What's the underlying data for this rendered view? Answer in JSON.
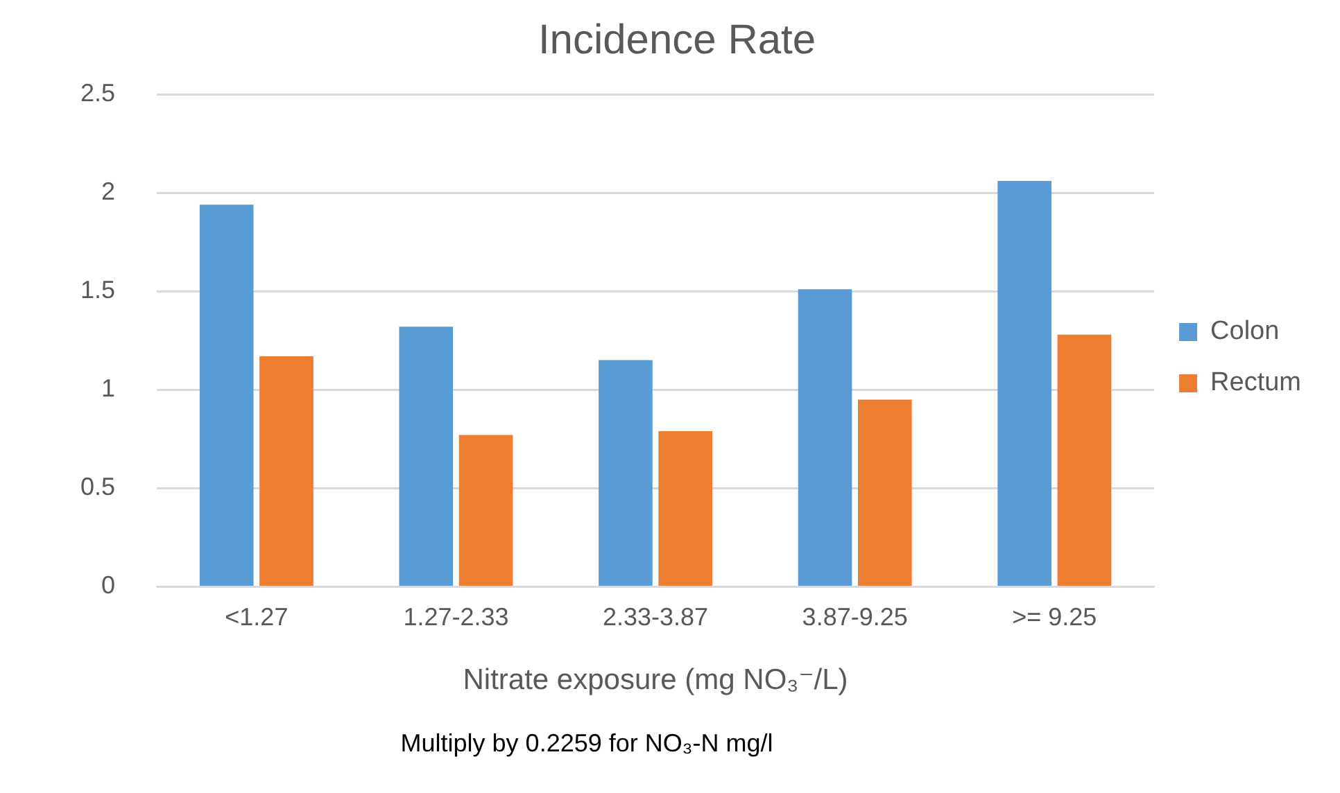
{
  "chart_data": {
    "type": "bar",
    "title": "Incidence Rate",
    "xlabel": "Nitrate exposure (mg NO₃⁻/L)",
    "categories": [
      "<1.27",
      "1.27-2.33",
      "2.33-3.87",
      "3.87-9.25",
      ">= 9.25"
    ],
    "series": [
      {
        "name": "Colon",
        "color": "#5b9bd5",
        "values": [
          1.94,
          1.32,
          1.15,
          1.51,
          2.06
        ]
      },
      {
        "name": "Rectum",
        "color": "#ed7d31",
        "values": [
          1.17,
          0.77,
          0.79,
          0.95,
          1.28
        ]
      }
    ],
    "ylim": [
      0,
      2.5
    ],
    "yticks": [
      0,
      0.5,
      1,
      1.5,
      2,
      2.5
    ],
    "grid": "y",
    "legend": "right",
    "annotations": [
      "Multiply by 0.2259 for NO₃-N mg/l"
    ]
  }
}
